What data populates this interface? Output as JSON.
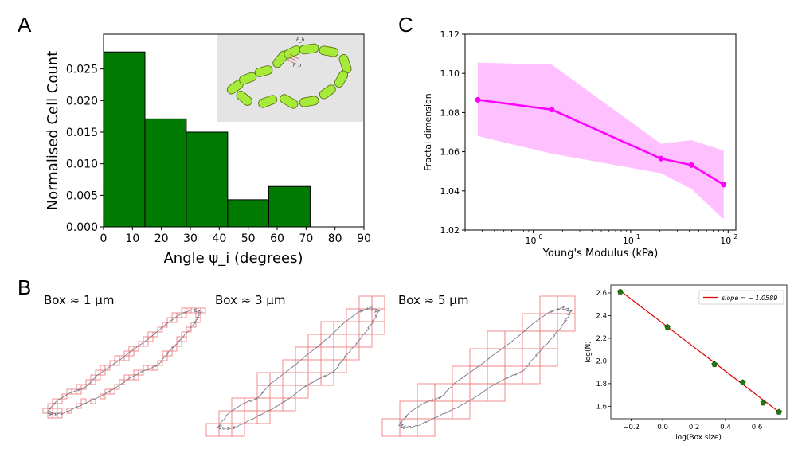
{
  "panels": {
    "a": "A",
    "b": "B",
    "c": "C"
  },
  "colors": {
    "bar_fill": "#007a00",
    "curve": "#ff00ff",
    "curve_band": "#ffc0ff",
    "box_grid": "#f08080",
    "outline": "#7a7a8a",
    "fit_line": "#e00000",
    "fit_points": "#207a10",
    "inset_bg": "#e4e4e4",
    "cell_fill": "#a6ea3a"
  },
  "inset": {
    "force_label_1": "F_b",
    "force_label_2": "F_b"
  },
  "box_labels": [
    "Box ≈ 1 μm",
    "Box ≈ 3 μm",
    "Box ≈ 5 μm"
  ],
  "chart_data": [
    {
      "id": "A",
      "type": "bar",
      "title": "",
      "xlabel": "Angle ψ_i (degrees)",
      "ylabel": "Normalised Cell Count",
      "bin_edges": [
        0,
        14.3,
        28.6,
        42.9,
        57.1,
        71.4
      ],
      "values": [
        0.0277,
        0.0171,
        0.015,
        0.0043,
        0.0064
      ],
      "xlim": [
        0,
        90
      ],
      "ylim": [
        0,
        0.0305
      ],
      "xticks": [
        0,
        10,
        20,
        30,
        40,
        50,
        60,
        70,
        80,
        90
      ],
      "yticks": [
        "0.000",
        "0.005",
        "0.010",
        "0.015",
        "0.020",
        "0.025"
      ]
    },
    {
      "id": "C",
      "type": "line",
      "title": "",
      "xlabel": "Young's Modulus (kPa)",
      "ylabel": "Fractal dimension",
      "xscale": "log",
      "x": [
        0.27,
        1.55,
        20.5,
        42,
        90
      ],
      "y": [
        1.0865,
        1.0815,
        1.0565,
        1.0532,
        1.0432
      ],
      "y_upper": [
        1.1055,
        1.1045,
        1.064,
        1.066,
        1.0605
      ],
      "y_lower": [
        1.068,
        1.059,
        1.049,
        1.041,
        1.0255
      ],
      "xlim": [
        0.2,
        120
      ],
      "ylim": [
        1.02,
        1.12
      ],
      "yticks": [
        "1.02",
        "1.04",
        "1.06",
        "1.08",
        "1.10",
        "1.12"
      ],
      "xticks": [
        {
          "base": "10",
          "exp": "0"
        },
        {
          "base": "10",
          "exp": "1"
        },
        {
          "base": "10",
          "exp": "2"
        }
      ]
    },
    {
      "id": "B-fit",
      "type": "scatter",
      "title": "",
      "xlabel": "log(Box size)",
      "ylabel": "log(N)",
      "legend": "slope = − 1.0589",
      "legend_position": "top-right",
      "x": [
        -0.27,
        0.03,
        0.33,
        0.51,
        0.64,
        0.74
      ],
      "y": [
        2.61,
        2.3,
        1.97,
        1.81,
        1.63,
        1.55
      ],
      "fit": {
        "slope": -1.0589,
        "intercept": 2.333
      },
      "xlim": [
        -0.33,
        0.79
      ],
      "ylim": [
        1.49,
        2.67
      ],
      "xticks": [
        "−0.2",
        "0.0",
        "0.2",
        "0.4",
        "0.6"
      ],
      "yticks": [
        "1.6",
        "1.8",
        "2.0",
        "2.2",
        "2.4",
        "2.6"
      ]
    }
  ]
}
